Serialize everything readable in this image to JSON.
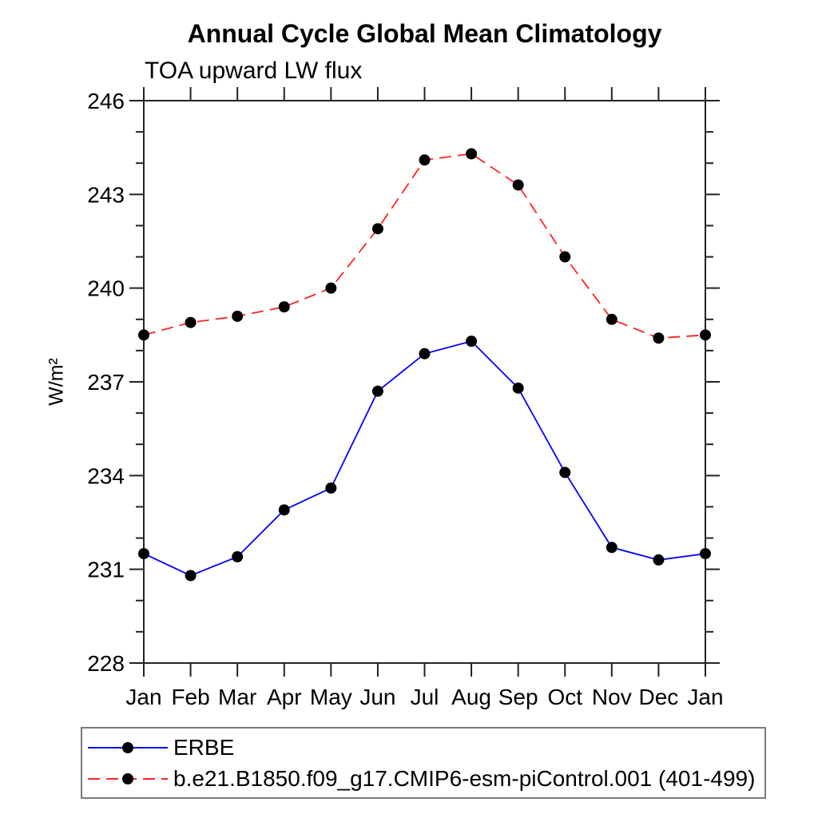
{
  "header": {
    "title": "Annual Cycle Global Mean Climatology",
    "subtitle": "TOA upward LW flux"
  },
  "chart_data": {
    "type": "line",
    "title": "Annual Cycle Global Mean Climatology",
    "subtitle": "TOA upward LW flux",
    "xlabel": "",
    "ylabel": "W/m²",
    "x_categories": [
      "Jan",
      "Feb",
      "Mar",
      "Apr",
      "May",
      "Jun",
      "Jul",
      "Aug",
      "Sep",
      "Oct",
      "Nov",
      "Dec",
      "Jan"
    ],
    "ylim": [
      228,
      246
    ],
    "y_major_step": 3,
    "y_minor_step": 1,
    "y_major_tick_labels": [
      "228",
      "231",
      "234",
      "237",
      "240",
      "243",
      "246"
    ],
    "grid": false,
    "legend_position": "bottom-left-box",
    "axis_color": "#222222",
    "series": [
      {
        "name": "ERBE",
        "color": "#0000ff",
        "line_style": "solid",
        "marker": "circle",
        "marker_color": "#000000",
        "values": [
          231.5,
          230.8,
          231.4,
          232.9,
          233.6,
          236.7,
          237.9,
          238.3,
          236.8,
          234.1,
          231.7,
          231.3,
          231.5
        ]
      },
      {
        "name": "b.e21.B1850.f09_g17.CMIP6-esm-piControl.001 (401-499)",
        "color": "#ff2222",
        "line_style": "dashed",
        "marker": "circle",
        "marker_color": "#000000",
        "values": [
          238.5,
          238.9,
          239.1,
          239.4,
          240.0,
          241.9,
          244.1,
          244.3,
          243.3,
          241.0,
          239.0,
          238.4,
          238.5
        ]
      }
    ]
  }
}
